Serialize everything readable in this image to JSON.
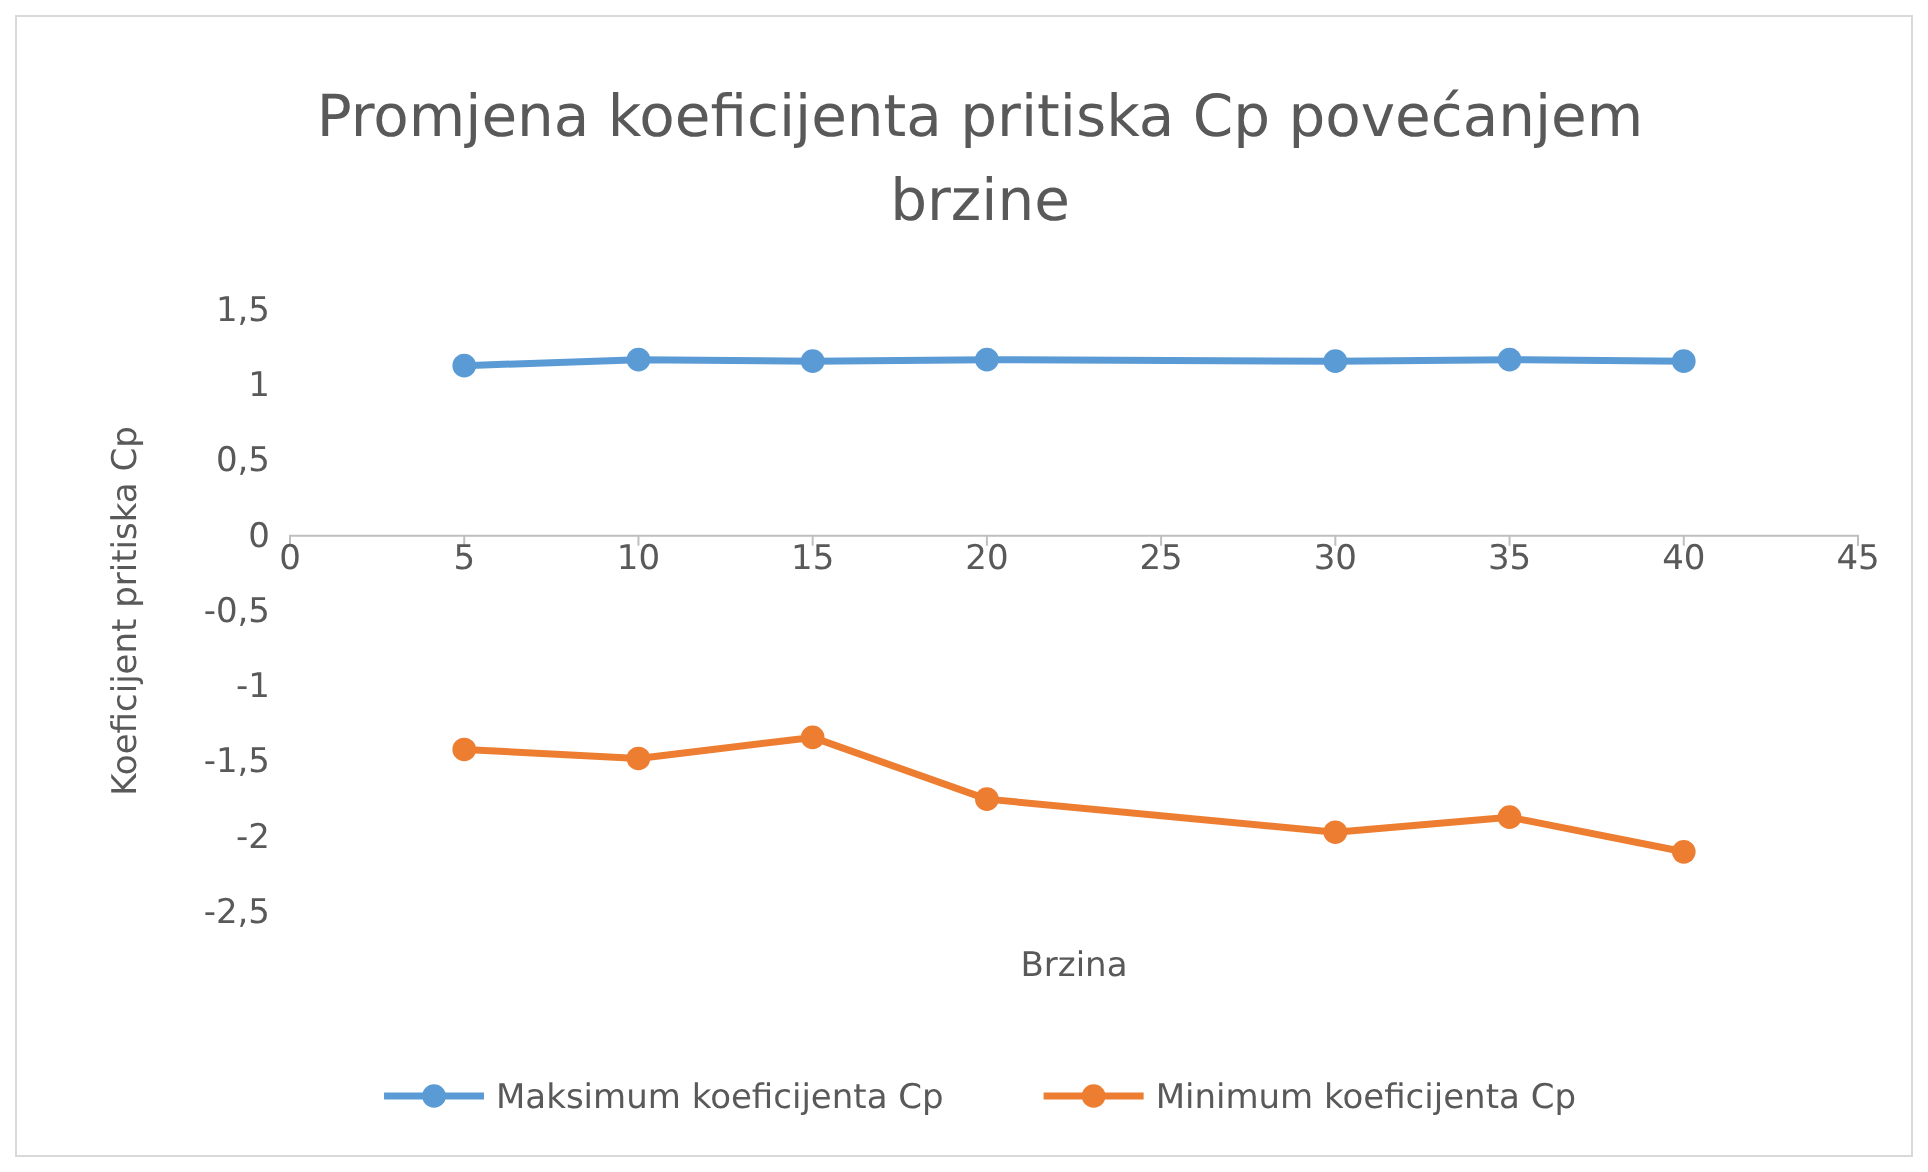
{
  "chart_data": {
    "type": "line",
    "title": "Promjena koeficijenta pritiska Cp povećanjem brzine",
    "xlabel": "Brzina",
    "ylabel": "Koeficijent pritiska Cp",
    "x": [
      5,
      10,
      15,
      20,
      30,
      35,
      40
    ],
    "series": [
      {
        "name": "Maksimum koeficijenta Cp",
        "color": "#5b9bd5",
        "values": [
          1.13,
          1.17,
          1.16,
          1.17,
          1.16,
          1.17,
          1.16
        ]
      },
      {
        "name": "Minimum koeficijenta Cp",
        "color": "#ed7d31",
        "values": [
          -1.42,
          -1.48,
          -1.34,
          -1.75,
          -1.97,
          -1.87,
          -2.1
        ]
      }
    ],
    "xlim": [
      0,
      45
    ],
    "xticks": [
      0,
      5,
      10,
      15,
      20,
      25,
      30,
      35,
      40,
      45
    ],
    "ylim": [
      -2.5,
      1.5
    ],
    "yticks": [
      {
        "value": -2.5,
        "label": "-2,5"
      },
      -2,
      {
        "value": -1.5,
        "label": "-1,5"
      },
      -1,
      {
        "value": -0.5,
        "label": "-0,5"
      },
      0,
      {
        "value": 0.5,
        "label": "0,5"
      },
      1,
      {
        "value": 1.5,
        "label": "1,5"
      }
    ],
    "grid": false,
    "legend": "bottom",
    "marker": "circle",
    "line_style": "solid"
  }
}
